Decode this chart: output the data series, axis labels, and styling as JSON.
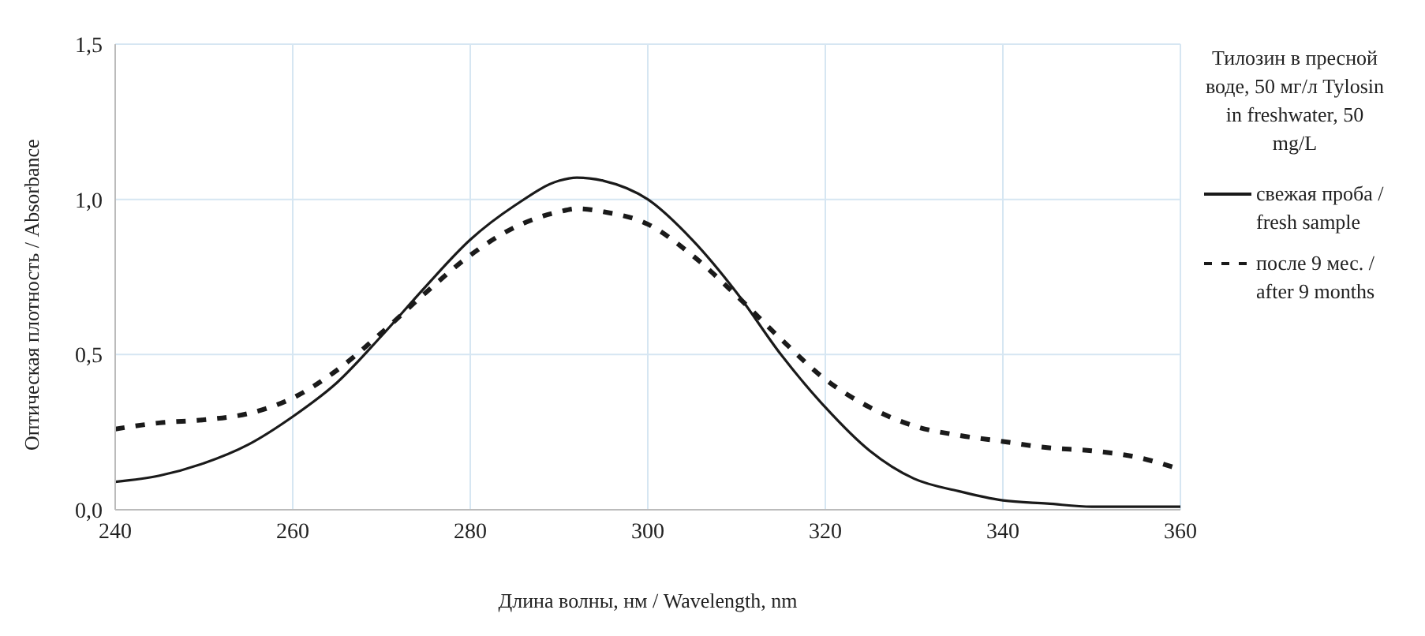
{
  "chart_data": {
    "type": "line",
    "xlabel": "Длина волны, нм / Wavelength, nm",
    "ylabel": "Оптическая плотность / Absorbance",
    "legend_title": "Тилозин в пресной воде, 50 мг/л Tylosin in freshwater, 50 mg/L",
    "x": [
      240,
      245,
      250,
      255,
      260,
      265,
      270,
      275,
      280,
      285,
      290,
      292,
      295,
      300,
      305,
      310,
      315,
      320,
      325,
      330,
      335,
      340,
      345,
      350,
      355,
      360
    ],
    "series": [
      {
        "name": "свежая проба / fresh sample",
        "color": "#1a1a1a",
        "line_style": "solid",
        "values": [
          0.09,
          0.11,
          0.15,
          0.21,
          0.3,
          0.41,
          0.56,
          0.72,
          0.87,
          0.98,
          1.06,
          1.07,
          1.06,
          1.0,
          0.87,
          0.7,
          0.5,
          0.33,
          0.19,
          0.1,
          0.06,
          0.03,
          0.02,
          0.01,
          0.01,
          0.01
        ]
      },
      {
        "name": "после 9 мес. / after 9 months",
        "color": "#1a1a1a",
        "line_style": "dashed",
        "values": [
          0.26,
          0.28,
          0.29,
          0.31,
          0.36,
          0.45,
          0.57,
          0.7,
          0.82,
          0.91,
          0.96,
          0.97,
          0.96,
          0.92,
          0.82,
          0.69,
          0.55,
          0.42,
          0.33,
          0.27,
          0.24,
          0.22,
          0.2,
          0.19,
          0.17,
          0.13
        ]
      }
    ],
    "xlim": [
      240,
      360
    ],
    "xticks": [
      240,
      260,
      280,
      300,
      320,
      340,
      360
    ],
    "ylim": [
      0,
      1.5
    ],
    "yticks": [
      {
        "value": 0,
        "label": "0,0"
      },
      {
        "value": 0.5,
        "label": "0,5"
      },
      {
        "value": 1,
        "label": "1,0"
      },
      {
        "value": 1.5,
        "label": "1,5"
      }
    ],
    "grid": true,
    "legend": "right",
    "marker": "none"
  }
}
